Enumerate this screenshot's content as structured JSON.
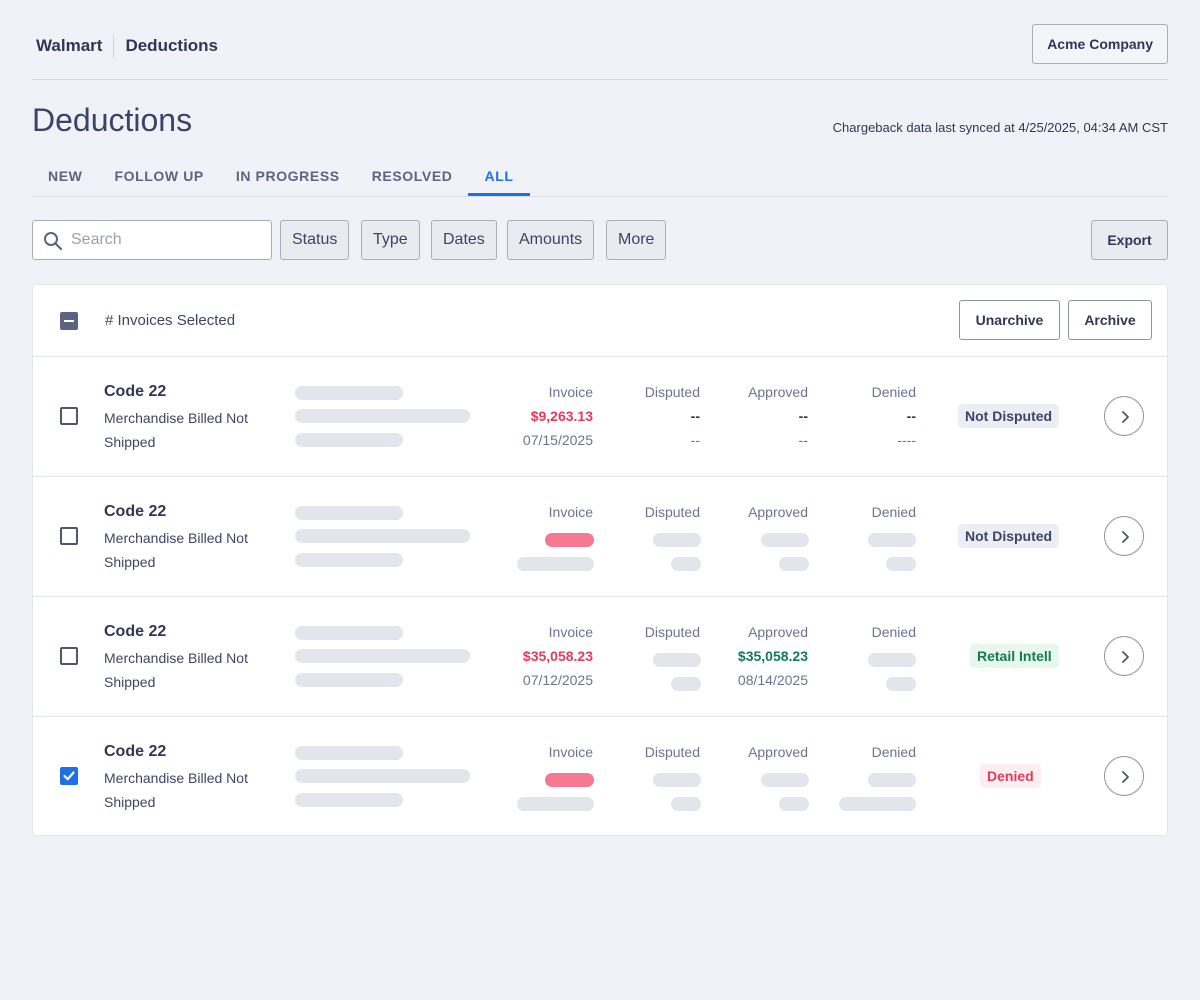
{
  "header": {
    "breadcrumb": [
      "Walmart",
      "Deductions"
    ],
    "company_button": "Acme Company"
  },
  "page": {
    "title": "Deductions",
    "sync_text": "Chargeback data last synced at 4/25/2025, 04:34 AM CST"
  },
  "tabs": [
    {
      "label": "NEW",
      "active": false
    },
    {
      "label": "FOLLOW UP",
      "active": false
    },
    {
      "label": "IN PROGRESS",
      "active": false
    },
    {
      "label": "RESOLVED",
      "active": false
    },
    {
      "label": "ALL",
      "active": true
    }
  ],
  "filters": {
    "search_placeholder": "Search",
    "buttons": [
      "Status",
      "Type",
      "Dates",
      "Amounts",
      "More"
    ],
    "export_label": "Export"
  },
  "table": {
    "selected_label": "# Invoices Selected",
    "unarchive_label": "Unarchive",
    "archive_label": "Archive",
    "column_labels": {
      "invoice": "Invoice",
      "disputed": "Disputed",
      "approved": "Approved",
      "denied": "Denied"
    },
    "rows": [
      {
        "code": "Code 22",
        "description": "Merchandise Billed Not Shipped",
        "checked": false,
        "invoice_amount": "$9,263.13",
        "invoice_date": "07/15/2025",
        "disputed_value": "--",
        "disputed_sub": "--",
        "approved_value": "--",
        "approved_sub": "--",
        "denied_value": "--",
        "denied_sub": "----",
        "status": "Not Disputed"
      },
      {
        "code": "Code 22",
        "description": "Merchandise Billed Not Shipped",
        "checked": false,
        "status": "Not Disputed"
      },
      {
        "code": "Code 22",
        "description": "Merchandise Billed Not Shipped",
        "checked": false,
        "invoice_amount": "$35,058.23",
        "invoice_date": "07/12/2025",
        "approved_value": "$35,058.23",
        "approved_sub": "08/14/2025",
        "status": "Retail Intell"
      },
      {
        "code": "Code 22",
        "description": "Merchandise Billed Not Shipped",
        "checked": true,
        "status": "Denied"
      }
    ]
  },
  "colors": {
    "accent": "#1f6fe5",
    "negative": "#e63a5e",
    "positive": "#137a58",
    "background": "#f1f2f7"
  },
  "icons": {
    "search": "search-icon",
    "row_open": "chevron-right-icon",
    "check": "check-icon"
  }
}
